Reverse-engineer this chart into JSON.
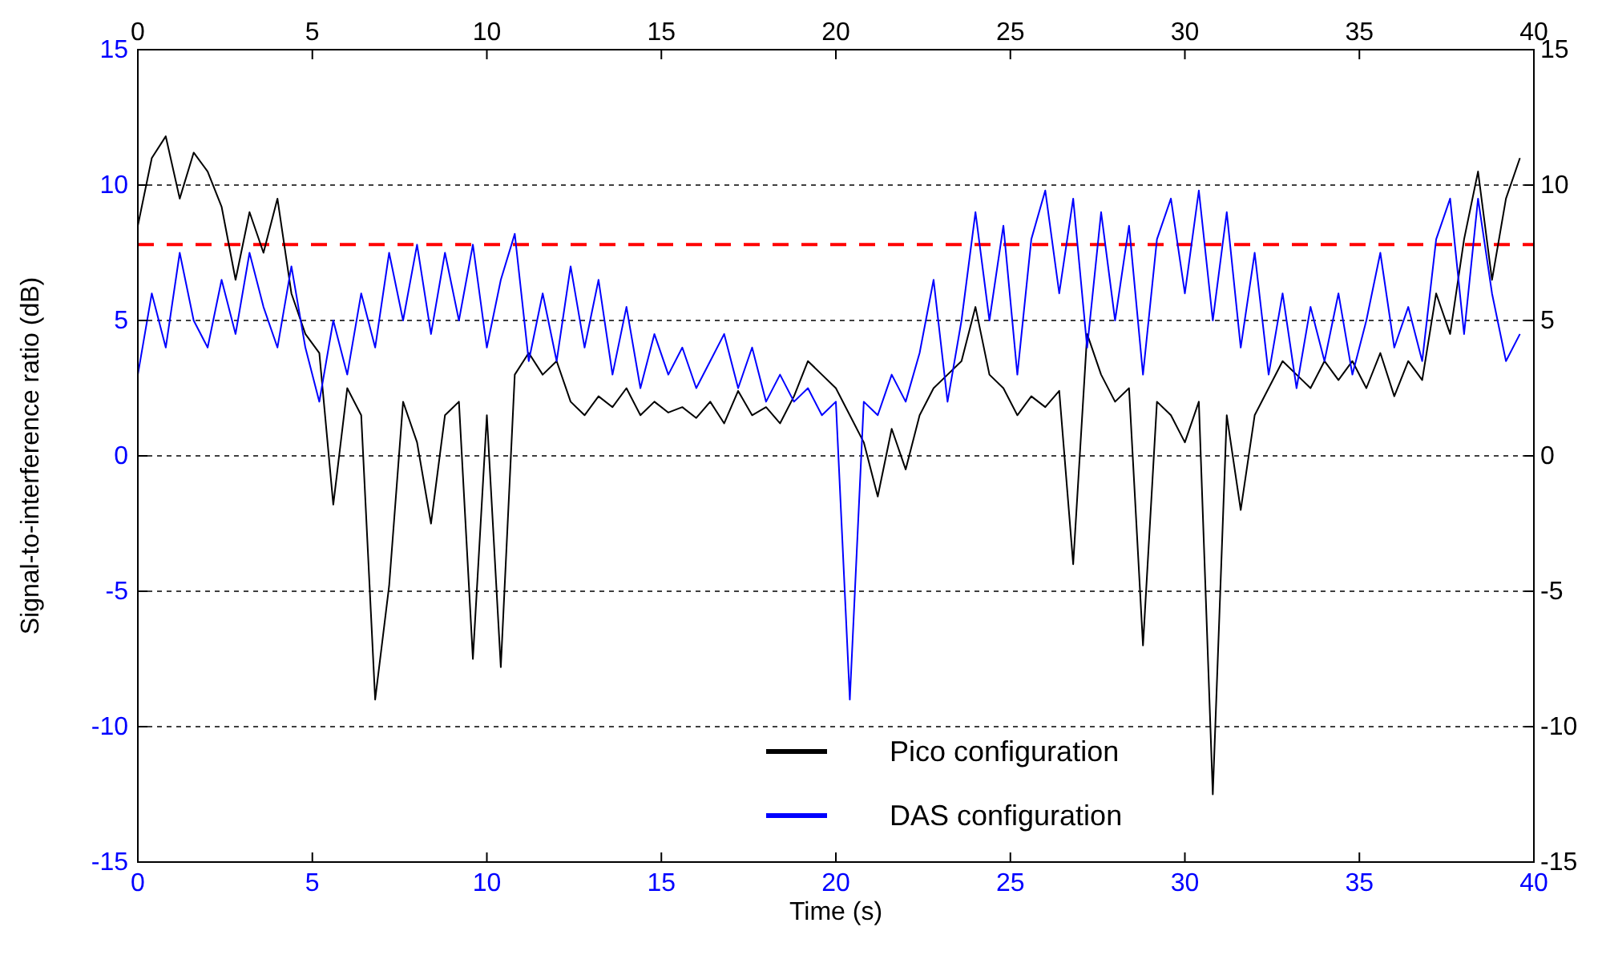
{
  "chart_data": {
    "type": "line",
    "xlabel": "Time (s)",
    "ylabel": "Signal-to-interference ratio (dB)",
    "x": [
      0,
      0.4,
      0.8,
      1.2,
      1.6,
      2,
      2.4,
      2.8,
      3.2,
      3.6,
      4,
      4.4,
      4.8,
      5.2,
      5.6,
      6,
      6.4,
      6.8,
      7.2,
      7.6,
      8,
      8.4,
      8.8,
      9.2,
      9.6,
      10,
      10.4,
      10.8,
      11.2,
      11.6,
      12,
      12.4,
      12.8,
      13.2,
      13.6,
      14,
      14.4,
      14.8,
      15.2,
      15.6,
      16,
      16.4,
      16.8,
      17.2,
      17.6,
      18,
      18.4,
      18.8,
      19.2,
      19.6,
      20,
      20.4,
      20.8,
      21.2,
      21.6,
      22,
      22.4,
      22.8,
      23.2,
      23.6,
      24,
      24.4,
      24.8,
      25.2,
      25.6,
      26,
      26.4,
      26.8,
      27.2,
      27.6,
      28,
      28.4,
      28.8,
      29.2,
      29.6,
      30,
      30.4,
      30.8,
      31.2,
      31.6,
      32,
      32.4,
      32.8,
      33.2,
      33.6,
      34,
      34.4,
      34.8,
      35.2,
      35.6,
      36,
      36.4,
      36.8,
      37.2,
      37.6,
      38,
      38.4,
      38.8,
      39.2,
      39.6
    ],
    "series": [
      {
        "name": "Pico configuration",
        "color": "#000000",
        "values": [
          8.5,
          11,
          11.8,
          9.5,
          11.2,
          10.5,
          9.2,
          6.5,
          9,
          7.5,
          9.5,
          6,
          4.5,
          3.8,
          -1.8,
          2.5,
          1.5,
          -9,
          -4.8,
          2,
          0.5,
          -2.5,
          1.5,
          2,
          -7.5,
          1.5,
          -7.8,
          3,
          3.8,
          3,
          3.5,
          2,
          1.5,
          2.2,
          1.8,
          2.5,
          1.5,
          2,
          1.6,
          1.8,
          1.4,
          2,
          1.2,
          2.4,
          1.5,
          1.8,
          1.2,
          2.2,
          3.5,
          3,
          2.5,
          1.5,
          0.5,
          -1.5,
          1,
          -0.5,
          1.5,
          2.5,
          3,
          3.5,
          5.5,
          3,
          2.5,
          1.5,
          2.2,
          1.8,
          2.4,
          -4,
          4.5,
          3,
          2,
          2.5,
          -7,
          2,
          1.5,
          0.5,
          2,
          -12.5,
          1.5,
          -2,
          1.5,
          2.5,
          3.5,
          3,
          2.5,
          3.5,
          2.8,
          3.5,
          2.5,
          3.8,
          2.2,
          3.5,
          2.8,
          6,
          4.5,
          8,
          10.5,
          6.5,
          9.5,
          11
        ]
      },
      {
        "name": "DAS configuration",
        "color": "#0000ff",
        "values": [
          3,
          6,
          4,
          7.5,
          5,
          4,
          6.5,
          4.5,
          7.5,
          5.5,
          4,
          7,
          4,
          2,
          5,
          3,
          6,
          4,
          7.5,
          5,
          7.8,
          4.5,
          7.5,
          5,
          7.8,
          4,
          6.5,
          8.2,
          3.5,
          6,
          3.5,
          7,
          4,
          6.5,
          3,
          5.5,
          2.5,
          4.5,
          3,
          4,
          2.5,
          3.5,
          4.5,
          2.5,
          4,
          2,
          3,
          2,
          2.5,
          1.5,
          2,
          -9,
          2,
          1.5,
          3,
          2,
          3.8,
          6.5,
          2,
          5,
          9,
          5,
          8.5,
          3,
          8,
          9.8,
          6,
          9.5,
          4,
          9,
          5,
          8.5,
          3,
          8,
          9.5,
          6,
          9.8,
          5,
          9,
          4,
          7.5,
          3,
          6,
          2.5,
          5.5,
          3.5,
          6,
          3,
          5,
          7.5,
          4,
          5.5,
          3.5,
          8,
          9.5,
          4.5,
          9.5,
          6,
          3.5,
          4.5
        ]
      }
    ],
    "xlim": [
      0,
      40
    ],
    "xticks": [
      0,
      5,
      10,
      15,
      20,
      25,
      30,
      35,
      40
    ],
    "x2lim": [
      0,
      40
    ],
    "x2ticks": [
      0,
      5,
      10,
      15,
      20,
      25,
      30,
      35,
      40
    ],
    "ylim": [
      -15,
      15
    ],
    "yticks": [
      -15,
      -10,
      -5,
      0,
      5,
      10,
      15
    ],
    "y2lim": [
      -15,
      15
    ],
    "y2ticks": [
      -15,
      -10,
      -5,
      0,
      5,
      10,
      15
    ],
    "ref_lines": [
      {
        "axis": "y",
        "value": 7.8,
        "color": "#ff0000",
        "line_style": "dashed"
      }
    ],
    "grid": "y",
    "legend": "bottom",
    "line_style": "solid",
    "marker": "none"
  }
}
